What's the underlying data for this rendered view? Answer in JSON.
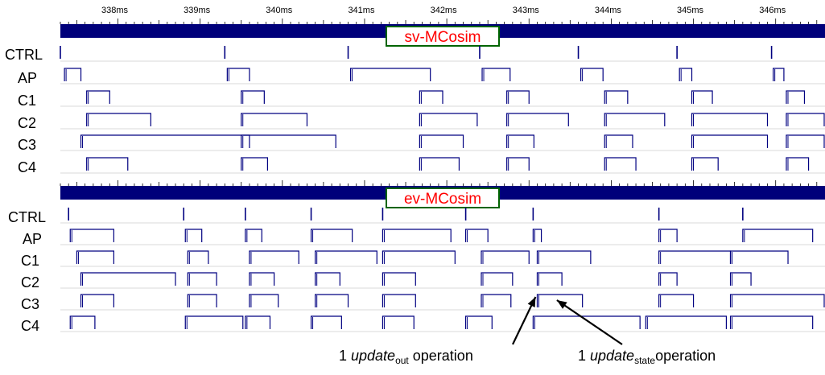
{
  "chart_data": {
    "type": "timeline",
    "x_unit": "ms",
    "xlim": [
      337.3,
      346.6
    ],
    "ticks": [
      "338ms",
      "339ms",
      "340ms",
      "341ms",
      "342ms",
      "343ms",
      "344ms",
      "345ms",
      "346ms"
    ],
    "tick_values": [
      338,
      339,
      340,
      341,
      342,
      343,
      344,
      345,
      346
    ],
    "rows": [
      "CTRL",
      "AP",
      "C1",
      "C2",
      "C3",
      "C4"
    ],
    "panels": [
      {
        "name": "sv-MCosim",
        "rows": {
          "CTRL": [
            [
              337.3,
              337.3
            ],
            [
              339.3,
              339.3
            ],
            [
              340.8,
              340.8
            ],
            [
              342.4,
              342.4
            ],
            [
              343.6,
              343.6
            ],
            [
              344.8,
              344.8
            ],
            [
              345.95,
              345.95
            ]
          ],
          "AP": [
            [
              337.35,
              337.55
            ],
            [
              339.33,
              339.6
            ],
            [
              340.83,
              341.8
            ],
            [
              342.43,
              342.77
            ],
            [
              343.63,
              343.9
            ],
            [
              344.83,
              344.98
            ],
            [
              345.97,
              346.1
            ]
          ],
          "C1": [
            [
              337.62,
              337.9
            ],
            [
              339.5,
              339.78
            ],
            [
              341.67,
              341.95
            ],
            [
              342.73,
              343.0
            ],
            [
              343.92,
              344.2
            ],
            [
              344.98,
              345.23
            ],
            [
              346.13,
              346.35
            ]
          ],
          "C2": [
            [
              337.62,
              338.4
            ],
            [
              339.5,
              340.3
            ],
            [
              341.67,
              342.37
            ],
            [
              342.73,
              343.48
            ],
            [
              343.92,
              344.65
            ],
            [
              344.98,
              345.9
            ],
            [
              346.13,
              346.6
            ]
          ],
          "C3": [
            [
              337.55,
              339.6
            ],
            [
              339.5,
              340.65
            ],
            [
              341.67,
              342.2
            ],
            [
              342.73,
              343.06
            ],
            [
              343.92,
              344.26
            ],
            [
              344.98,
              345.9
            ],
            [
              346.13,
              346.6
            ]
          ],
          "C4": [
            [
              337.62,
              338.12
            ],
            [
              339.5,
              339.82
            ],
            [
              341.67,
              342.15
            ],
            [
              342.73,
              343.0
            ],
            [
              343.92,
              344.3
            ],
            [
              344.98,
              345.3
            ],
            [
              346.13,
              346.4
            ]
          ]
        }
      },
      {
        "name": "ev-MCosim",
        "rows": {
          "CTRL": [
            [
              337.4,
              337.4
            ],
            [
              338.8,
              338.8
            ],
            [
              339.55,
              339.55
            ],
            [
              340.35,
              340.35
            ],
            [
              341.22,
              341.22
            ],
            [
              342.23,
              342.23
            ],
            [
              343.05,
              343.05
            ],
            [
              344.58,
              344.58
            ],
            [
              345.6,
              345.6
            ]
          ],
          "AP": [
            [
              337.42,
              337.95
            ],
            [
              338.82,
              339.02
            ],
            [
              339.55,
              339.75
            ],
            [
              340.35,
              340.85
            ],
            [
              341.22,
              342.05
            ],
            [
              342.23,
              342.5
            ],
            [
              343.05,
              343.15
            ],
            [
              344.58,
              344.8
            ],
            [
              345.6,
              346.45
            ]
          ],
          "C1": [
            [
              337.5,
              337.95
            ],
            [
              338.85,
              339.1
            ],
            [
              339.6,
              340.2
            ],
            [
              340.4,
              341.15
            ],
            [
              341.22,
              342.1
            ],
            [
              342.42,
              343.0
            ],
            [
              343.1,
              343.75
            ],
            [
              344.58,
              345.45
            ],
            [
              345.45,
              346.15
            ]
          ],
          "C2": [
            [
              337.55,
              338.7
            ],
            [
              338.85,
              339.2
            ],
            [
              339.6,
              339.9
            ],
            [
              340.4,
              340.7
            ],
            [
              341.22,
              341.62
            ],
            [
              342.42,
              342.8
            ],
            [
              343.1,
              343.4
            ],
            [
              344.58,
              344.8
            ],
            [
              345.45,
              345.7
            ]
          ],
          "C3": [
            [
              337.55,
              337.95
            ],
            [
              338.85,
              339.2
            ],
            [
              339.6,
              339.95
            ],
            [
              340.4,
              340.8
            ],
            [
              341.22,
              341.62
            ],
            [
              342.42,
              342.78
            ],
            [
              343.1,
              343.65
            ],
            [
              344.58,
              345.0
            ],
            [
              345.45,
              346.6
            ]
          ],
          "C4": [
            [
              337.42,
              337.72
            ],
            [
              338.82,
              339.52
            ],
            [
              339.55,
              339.85
            ],
            [
              340.35,
              340.72
            ],
            [
              341.22,
              341.6
            ],
            [
              342.23,
              342.55
            ],
            [
              343.05,
              344.35
            ],
            [
              344.42,
              345.4
            ],
            [
              345.45,
              346.45
            ]
          ]
        }
      }
    ],
    "annotations": [
      {
        "text_pre": "1 ",
        "text_em": "update",
        "text_sub": "out",
        "text_post": " operation",
        "points_to_ms": 343.05,
        "row": "C3",
        "panel": "ev-MCosim"
      },
      {
        "text_pre": "1 ",
        "text_em": "update",
        "text_sub": "state",
        "text_post": "operation",
        "points_to_ms": 343.3,
        "row": "C3",
        "panel": "ev-MCosim"
      }
    ],
    "colors": {
      "trace": "#000080",
      "header_bar": "#00007a",
      "panel_label": "#ff0000",
      "label_border": "#006400",
      "grid": "#d8d8d8"
    }
  }
}
